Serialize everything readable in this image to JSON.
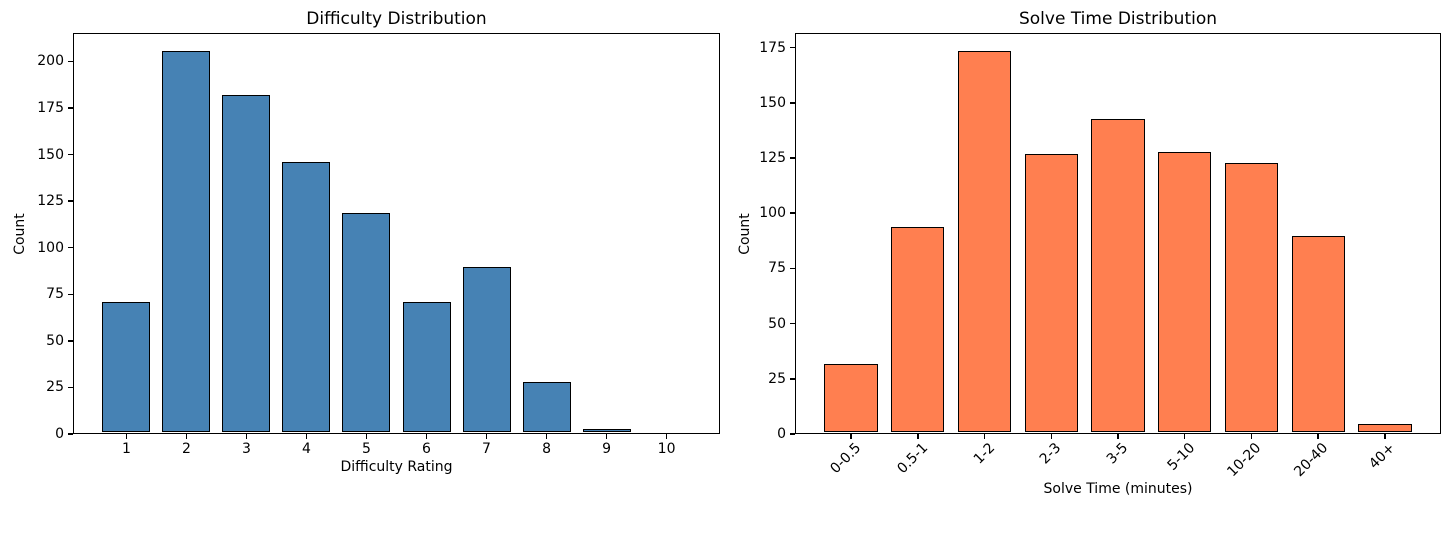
{
  "figure": {
    "background": "#ffffff",
    "spine_color": "#000000",
    "text_color": "#000000"
  },
  "chart_data": [
    {
      "type": "bar",
      "title": "Difficulty Distribution",
      "xlabel": "Difficulty Rating",
      "ylabel": "Count",
      "categories": [
        "1",
        "2",
        "3",
        "4",
        "5",
        "6",
        "7",
        "8",
        "9",
        "10"
      ],
      "values": [
        70,
        205,
        181,
        145,
        118,
        70,
        89,
        27,
        2,
        0
      ],
      "bar_color": "#4682B4",
      "edge_color": "#000000",
      "yticks": [
        0,
        25,
        50,
        75,
        100,
        125,
        150,
        175,
        200
      ],
      "ylim": [
        0,
        215.25
      ],
      "x_positions": [
        1,
        2,
        3,
        4,
        5,
        6,
        7,
        8,
        9,
        10
      ],
      "xlim": [
        0.11,
        10.89
      ],
      "bar_width_units": 0.8,
      "xtick_rotation": 0,
      "grid": false,
      "legend": null
    },
    {
      "type": "bar",
      "title": "Solve Time Distribution",
      "xlabel": "Solve Time (minutes)",
      "ylabel": "Count",
      "categories": [
        "0-0.5",
        "0.5-1",
        "1-2",
        "2-3",
        "3-5",
        "5-10",
        "10-20",
        "20-40",
        "40+"
      ],
      "values": [
        31,
        93,
        173,
        126,
        142,
        127,
        122,
        89,
        4
      ],
      "bar_color": "#FF7F50",
      "edge_color": "#000000",
      "yticks": [
        0,
        25,
        50,
        75,
        100,
        125,
        150,
        175
      ],
      "ylim": [
        0,
        181.65
      ],
      "x_positions": [
        0,
        1,
        2,
        3,
        4,
        5,
        6,
        7,
        8
      ],
      "xlim": [
        -0.84,
        8.84
      ],
      "bar_width_units": 0.8,
      "xtick_rotation": 45,
      "grid": false,
      "legend": null
    }
  ]
}
